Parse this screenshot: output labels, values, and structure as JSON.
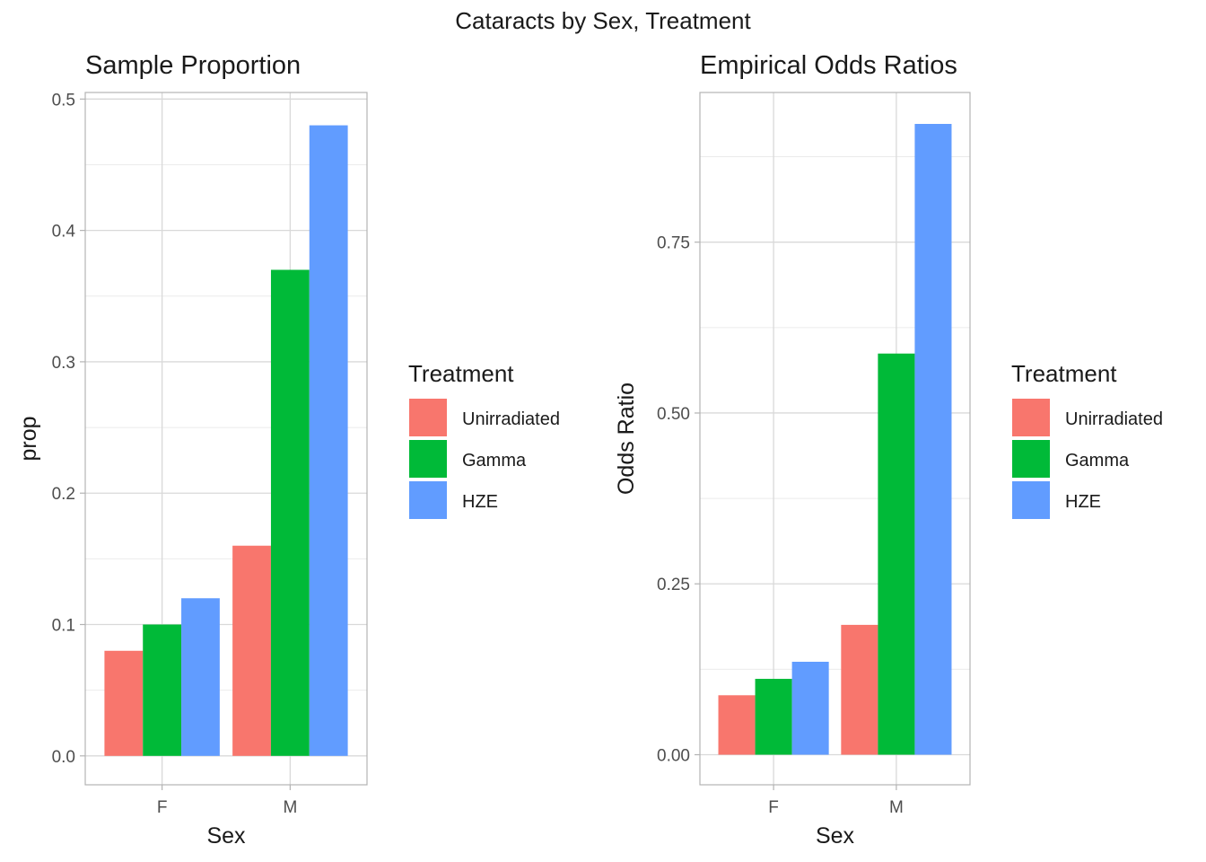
{
  "figure": {
    "title": "Cataracts by Sex, Treatment"
  },
  "colors": {
    "Unirradiated": "#F8766D",
    "Gamma": "#00BA38",
    "HZE": "#619CFF"
  },
  "chart_data": [
    {
      "type": "bar",
      "title": "Sample Proportion",
      "xlabel": "Sex",
      "ylabel": "prop",
      "categories": [
        "F",
        "M"
      ],
      "ylim": [
        -0.022,
        0.505
      ],
      "yticks": [
        0.0,
        0.1,
        0.2,
        0.3,
        0.4,
        0.5
      ],
      "ytick_labels": [
        "0.0",
        "0.1",
        "0.2",
        "0.3",
        "0.4",
        "0.5"
      ],
      "series": [
        {
          "name": "Unirradiated",
          "values": [
            0.08,
            0.16
          ]
        },
        {
          "name": "Gamma",
          "values": [
            0.1,
            0.37
          ]
        },
        {
          "name": "HZE",
          "values": [
            0.12,
            0.48
          ]
        }
      ],
      "legend": {
        "title": "Treatment",
        "items": [
          "Unirradiated",
          "Gamma",
          "HZE"
        ],
        "position": "right"
      },
      "grid": true
    },
    {
      "type": "bar",
      "title": "Empirical Odds Ratios",
      "xlabel": "Sex",
      "ylabel": "Odds Ratio",
      "categories": [
        "F",
        "M"
      ],
      "ylim": [
        -0.044,
        0.969
      ],
      "yticks": [
        0.0,
        0.25,
        0.5,
        0.75
      ],
      "ytick_labels": [
        "0.00",
        "0.25",
        "0.50",
        "0.75"
      ],
      "series": [
        {
          "name": "Unirradiated",
          "values": [
            0.087,
            0.19
          ]
        },
        {
          "name": "Gamma",
          "values": [
            0.111,
            0.587
          ]
        },
        {
          "name": "HZE",
          "values": [
            0.136,
            0.923
          ]
        }
      ],
      "legend": {
        "title": "Treatment",
        "items": [
          "Unirradiated",
          "Gamma",
          "HZE"
        ],
        "position": "right"
      },
      "grid": true
    }
  ]
}
